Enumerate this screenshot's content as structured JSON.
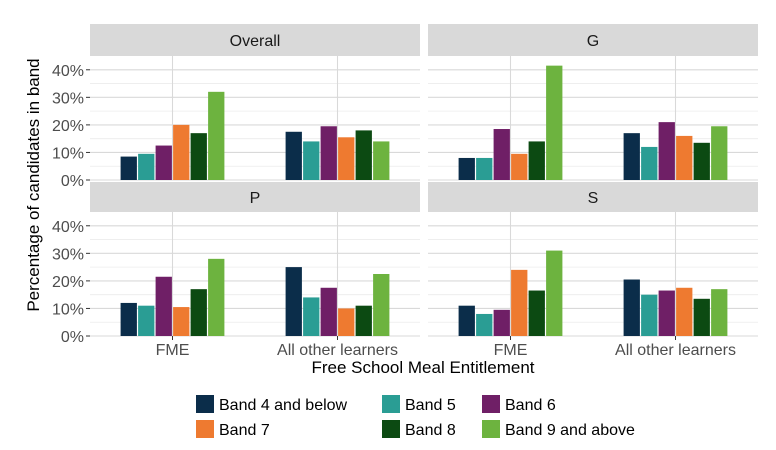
{
  "chart_data": {
    "type": "bar",
    "xlabel": "Free School Meal Entitlement",
    "ylabel": "Percentage of candidates in band",
    "ylim": [
      0,
      45
    ],
    "yticks": [
      "0%",
      "10%",
      "20%",
      "30%",
      "40%"
    ],
    "ytick_values": [
      0,
      10,
      20,
      30,
      40
    ],
    "categories": [
      "FME",
      "All other learners"
    ],
    "grid": true,
    "legend_position": "bottom",
    "series_meta": [
      {
        "name": "Band 4 and below",
        "color": "#0b2d4a"
      },
      {
        "name": "Band 5",
        "color": "#2a9d94"
      },
      {
        "name": "Band 6",
        "color": "#6f1f66"
      },
      {
        "name": "Band 7",
        "color": "#ee7a30"
      },
      {
        "name": "Band 8",
        "color": "#0c4a12"
      },
      {
        "name": "Band 9 and above",
        "color": "#6db33f"
      }
    ],
    "panels": [
      {
        "title": "Overall",
        "series": [
          {
            "name": "Band 4 and below",
            "values": [
              8.5,
              17.5
            ]
          },
          {
            "name": "Band 5",
            "values": [
              9.5,
              14
            ]
          },
          {
            "name": "Band 6",
            "values": [
              12.5,
              19.5
            ]
          },
          {
            "name": "Band 7",
            "values": [
              20,
              15.5
            ]
          },
          {
            "name": "Band 8",
            "values": [
              17,
              18
            ]
          },
          {
            "name": "Band 9 and above",
            "values": [
              32,
              14
            ]
          }
        ]
      },
      {
        "title": "G",
        "series": [
          {
            "name": "Band 4 and below",
            "values": [
              8,
              17
            ]
          },
          {
            "name": "Band 5",
            "values": [
              8,
              12
            ]
          },
          {
            "name": "Band 6",
            "values": [
              18.5,
              21
            ]
          },
          {
            "name": "Band 7",
            "values": [
              9.5,
              16
            ]
          },
          {
            "name": "Band 8",
            "values": [
              14,
              13.5
            ]
          },
          {
            "name": "Band 9 and above",
            "values": [
              41.5,
              19.5
            ]
          }
        ]
      },
      {
        "title": "P",
        "series": [
          {
            "name": "Band 4 and below",
            "values": [
              12,
              25
            ]
          },
          {
            "name": "Band 5",
            "values": [
              11,
              14
            ]
          },
          {
            "name": "Band 6",
            "values": [
              21.5,
              17.5
            ]
          },
          {
            "name": "Band 7",
            "values": [
              10.5,
              10
            ]
          },
          {
            "name": "Band 8",
            "values": [
              17,
              11
            ]
          },
          {
            "name": "Band 9 and above",
            "values": [
              28,
              22.5
            ]
          }
        ]
      },
      {
        "title": "S",
        "series": [
          {
            "name": "Band 4 and below",
            "values": [
              11,
              20.5
            ]
          },
          {
            "name": "Band 5",
            "values": [
              8,
              15
            ]
          },
          {
            "name": "Band 6",
            "values": [
              9.5,
              16.5
            ]
          },
          {
            "name": "Band 7",
            "values": [
              24,
              17.5
            ]
          },
          {
            "name": "Band 8",
            "values": [
              16.5,
              13.5
            ]
          },
          {
            "name": "Band 9 and above",
            "values": [
              31,
              17
            ]
          }
        ]
      }
    ]
  }
}
